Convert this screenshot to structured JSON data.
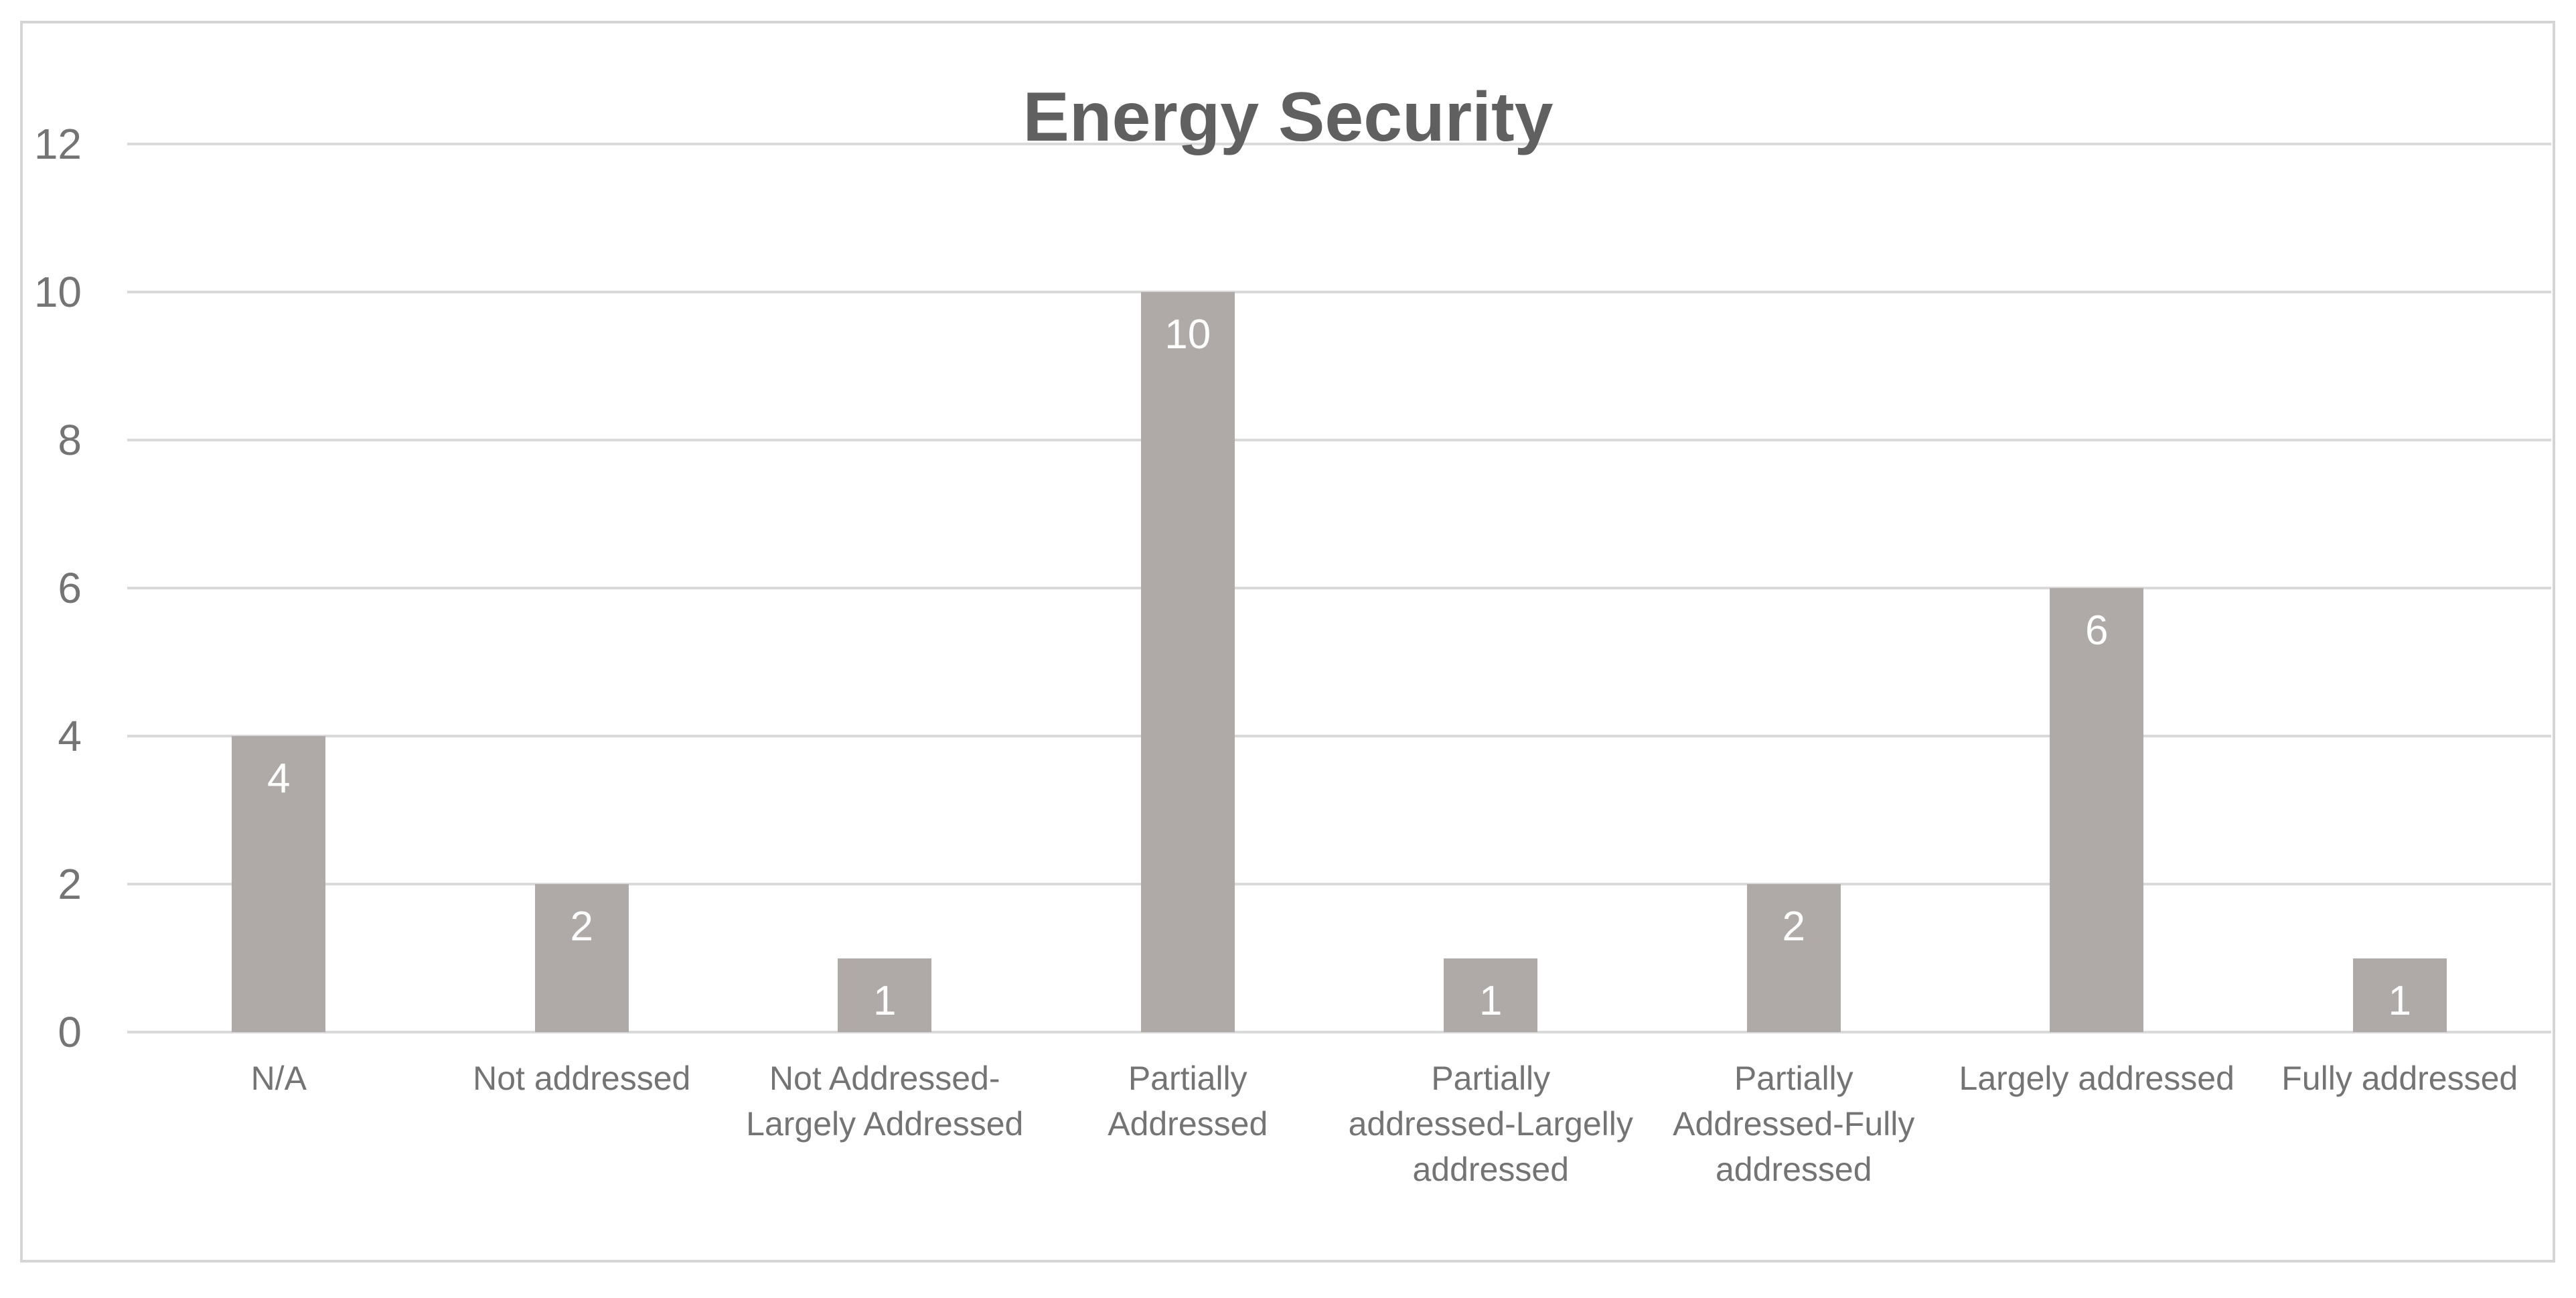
{
  "chart_data": {
    "type": "bar",
    "title": "Energy Security",
    "categories": [
      "N/A",
      "Not addressed",
      "Not Addressed-Largely Addressed",
      "Partially Addressed",
      "Partially addressed-Largelly addressed",
      "Partially Addressed-Fully addressed",
      "Largely addressed",
      "Fully addressed"
    ],
    "category_label_lines": [
      [
        "N/A"
      ],
      [
        "Not addressed"
      ],
      [
        "Not Addressed-",
        "Largely Addressed"
      ],
      [
        "Partially",
        "Addressed"
      ],
      [
        "Partially",
        "addressed-Largelly",
        "addressed"
      ],
      [
        "Partially",
        "Addressed-Fully",
        "addressed"
      ],
      [
        "Largely addressed"
      ],
      [
        "Fully addressed"
      ]
    ],
    "values": [
      4,
      2,
      1,
      10,
      1,
      2,
      6,
      1
    ],
    "data_labels": [
      "4",
      "2",
      "1",
      "10",
      "1",
      "2",
      "6",
      "1"
    ],
    "xlabel": "",
    "ylabel": "",
    "ylim": [
      0,
      12
    ],
    "y_ticks": [
      0,
      2,
      4,
      6,
      8,
      10,
      12
    ],
    "grid": "horizontal-only",
    "legend": "none",
    "colors": {
      "bar_fill": "#afaaa8",
      "data_label_text": "#ffffff",
      "gridline": "#d9d9d9",
      "frame_border": "#d5d5d5",
      "title_text": "#606060",
      "axis_text": "#747474",
      "background": "#ffffff"
    }
  }
}
